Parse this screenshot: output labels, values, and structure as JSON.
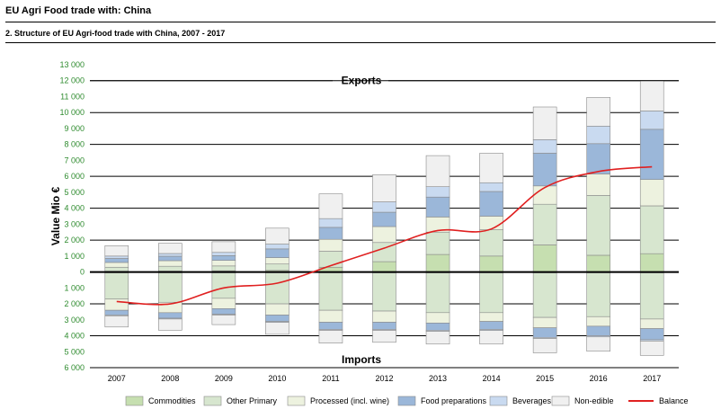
{
  "page": {
    "title": "EU Agri Food trade with: China",
    "subtitle": "2. Structure of EU Agri-food trade with China, 2007 - 2017"
  },
  "chart_data": {
    "type": "bar",
    "title": "2. Structure of EU Agri-food trade with China, 2007 - 2017",
    "xlabel": "",
    "ylabel": "Value Mio €",
    "ylim": [
      -6000,
      13000
    ],
    "ytick_values": [
      13000,
      12000,
      11000,
      10000,
      9000,
      8000,
      7000,
      6000,
      5000,
      4000,
      3000,
      2000,
      1000,
      0,
      -1000,
      -2000,
      -3000,
      -4000,
      -5000,
      -6000
    ],
    "ytick_labels": [
      "13 000",
      "12 000",
      "11 000",
      "10 000",
      "9 000",
      "8 000",
      "7 000",
      "6 000",
      "5 000",
      "4 000",
      "3 000",
      "2 000",
      "1 000",
      "0",
      "1 000",
      "2 000",
      "3 000",
      "4 000",
      "5 000",
      "6 000"
    ],
    "categories": [
      "2007",
      "2008",
      "2009",
      "2010",
      "2011",
      "2012",
      "2013",
      "2014",
      "2015",
      "2016",
      "2017"
    ],
    "annotations": {
      "exports": "Exports",
      "imports": "Imports"
    },
    "colors": {
      "Commodities": "#c6dfb0",
      "Other Primary": "#d7e6cf",
      "Processed (incl. wine)": "#edf2df",
      "Food preparations": "#9bb7d9",
      "Beverages": "#c9daf0",
      "Non-edible": "#f0f0f0",
      "Balance": "#e02020"
    },
    "export_series": [
      {
        "name": "Commodities",
        "values": [
          50,
          60,
          80,
          100,
          300,
          650,
          1100,
          1000,
          1700,
          1050,
          1150
        ]
      },
      {
        "name": "Other Primary",
        "values": [
          250,
          300,
          300,
          400,
          1000,
          1200,
          1400,
          1650,
          2550,
          3750,
          3000
        ]
      },
      {
        "name": "Processed (incl. wine)",
        "values": [
          300,
          350,
          350,
          400,
          750,
          1000,
          950,
          850,
          1150,
          1350,
          1650
        ]
      },
      {
        "name": "Food preparations",
        "values": [
          250,
          280,
          300,
          550,
          750,
          900,
          1250,
          1550,
          2050,
          1900,
          3150
        ]
      },
      {
        "name": "Beverages",
        "values": [
          150,
          170,
          200,
          300,
          550,
          650,
          650,
          550,
          850,
          1100,
          1150
        ]
      },
      {
        "name": "Non-edible",
        "values": [
          650,
          640,
          670,
          1000,
          1550,
          1700,
          1950,
          1850,
          2050,
          1800,
          1900
        ]
      }
    ],
    "import_series": [
      {
        "name": "Commodities",
        "values": [
          -50,
          -50,
          -50,
          -50,
          -50,
          -50,
          -50,
          -50,
          -50,
          -50,
          -50
        ]
      },
      {
        "name": "Other Primary",
        "values": [
          -1650,
          -1850,
          -1600,
          -1950,
          -2350,
          -2400,
          -2500,
          -2500,
          -2800,
          -2750,
          -2900
        ]
      },
      {
        "name": "Processed (incl. wine)",
        "values": [
          -700,
          -650,
          -650,
          -700,
          -750,
          -700,
          -650,
          -550,
          -650,
          -600,
          -600
        ]
      },
      {
        "name": "Food preparations",
        "values": [
          -300,
          -350,
          -350,
          -400,
          -450,
          -450,
          -450,
          -500,
          -600,
          -600,
          -700
        ]
      },
      {
        "name": "Beverages",
        "values": [
          -50,
          -50,
          -50,
          -60,
          -60,
          -60,
          -70,
          -70,
          -70,
          -70,
          -80
        ]
      },
      {
        "name": "Non-edible",
        "values": [
          -700,
          -700,
          -600,
          -750,
          -800,
          -750,
          -800,
          -850,
          -900,
          -900,
          -900
        ]
      }
    ],
    "balance": {
      "name": "Balance",
      "values": [
        -1850,
        -2000,
        -1000,
        -700,
        400,
        1500,
        2600,
        2700,
        5300,
        6300,
        6600
      ]
    },
    "legend": [
      "Commodities",
      "Other Primary",
      "Processed (incl. wine)",
      "Food preparations",
      "Beverages",
      "Non-edible",
      "Balance"
    ]
  }
}
